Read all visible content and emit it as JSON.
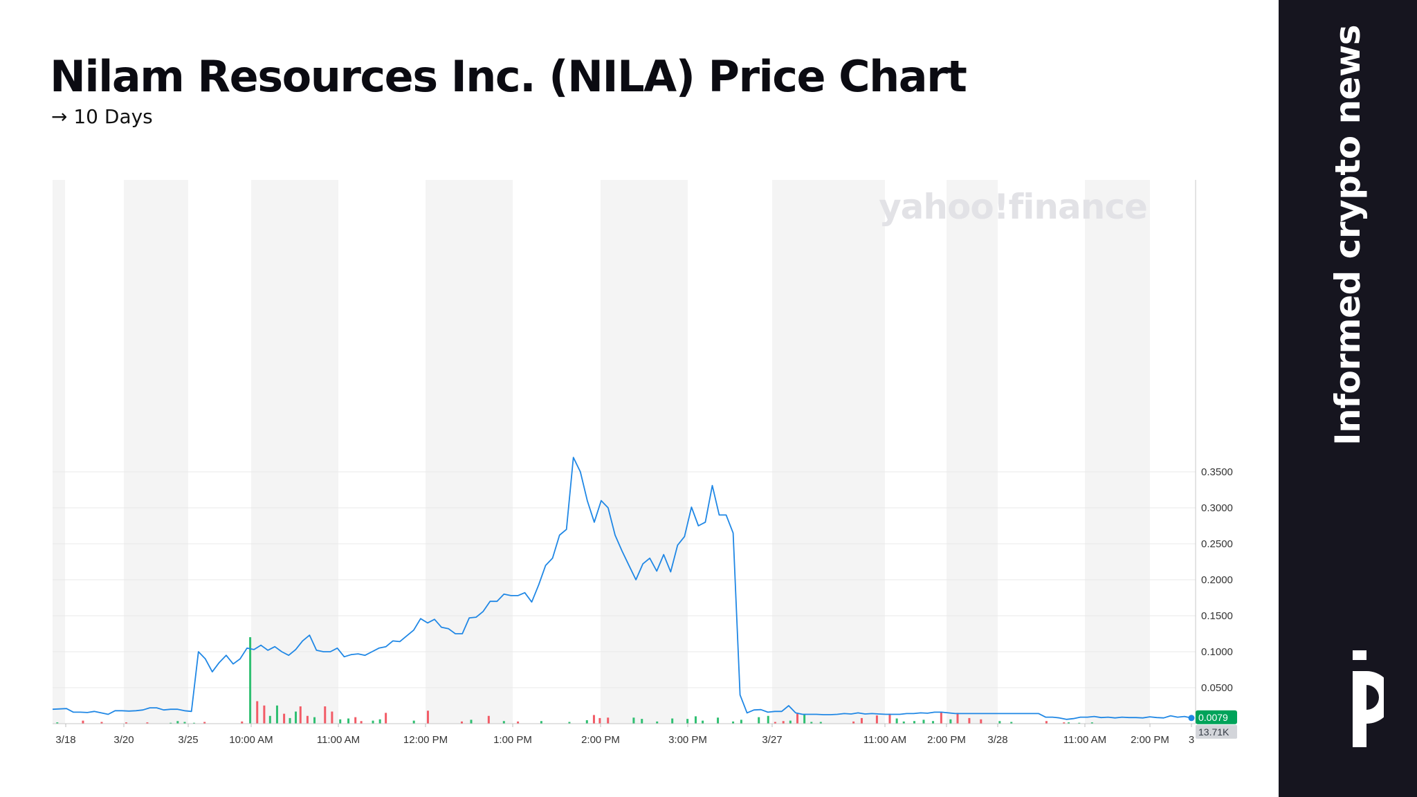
{
  "header": {
    "title": "Nilam Resources Inc. (NILA) Price Chart",
    "subtitle": "→ 10 Days"
  },
  "watermark": "yahoo!finance",
  "sidebar": {
    "tagline": "Informed crypto news",
    "logo_icon": "brand-logo-icon"
  },
  "colors": {
    "line": "#1f87e5",
    "volume_up": "#2fbf71",
    "volume_down": "#f25b66",
    "shade": "#f4f4f4",
    "sidebar_bg": "#16151f",
    "price_tag": "#00a35a",
    "volume_tag": "#d3d5da"
  },
  "chart_data": {
    "type": "line",
    "title": "Nilam Resources Inc. (NILA) Price Chart",
    "period": "10 Days",
    "ylim": [
      0,
      0.38
    ],
    "y_ticks": [
      "0.3500",
      "0.3000",
      "0.2500",
      "0.2000",
      "0.1500",
      "0.1000",
      "0.0500"
    ],
    "x_ticks": [
      "3/18",
      "3/20",
      "3/25",
      "10:00 AM",
      "11:00 AM",
      "12:00 PM",
      "1:00 PM",
      "2:00 PM",
      "3:00 PM",
      "3/27",
      "11:00 AM",
      "2:00 PM",
      "3/28",
      "11:00 AM",
      "2:00 PM",
      "3"
    ],
    "grid": true,
    "price_tag": "0.0079",
    "volume_tag": "13.71K",
    "price": [
      0.02,
      0.0205,
      0.021,
      0.016,
      0.016,
      0.0155,
      0.017,
      0.015,
      0.013,
      0.018,
      0.018,
      0.0175,
      0.018,
      0.019,
      0.022,
      0.022,
      0.019,
      0.02,
      0.02,
      0.018,
      0.017,
      0.1,
      0.09,
      0.072,
      0.085,
      0.095,
      0.083,
      0.09,
      0.105,
      0.103,
      0.109,
      0.102,
      0.107,
      0.1,
      0.095,
      0.103,
      0.115,
      0.123,
      0.102,
      0.1,
      0.1,
      0.105,
      0.093,
      0.096,
      0.097,
      0.095,
      0.1,
      0.105,
      0.107,
      0.115,
      0.114,
      0.122,
      0.13,
      0.146,
      0.14,
      0.145,
      0.134,
      0.132,
      0.125,
      0.125,
      0.147,
      0.148,
      0.156,
      0.17,
      0.17,
      0.18,
      0.178,
      0.178,
      0.182,
      0.169,
      0.193,
      0.22,
      0.23,
      0.262,
      0.27,
      0.37,
      0.35,
      0.31,
      0.28,
      0.31,
      0.3,
      0.262,
      0.24,
      0.22,
      0.2,
      0.222,
      0.23,
      0.212,
      0.235,
      0.211,
      0.248,
      0.26,
      0.301,
      0.275,
      0.28,
      0.331,
      0.29,
      0.29,
      0.265,
      0.04,
      0.015,
      0.019,
      0.0195,
      0.016,
      0.017,
      0.017,
      0.025,
      0.015,
      0.013,
      0.013,
      0.013,
      0.0125,
      0.0125,
      0.013,
      0.014,
      0.0135,
      0.015,
      0.0135,
      0.014,
      0.0135,
      0.013,
      0.013,
      0.013,
      0.014,
      0.014,
      0.015,
      0.0145,
      0.016,
      0.016,
      0.015,
      0.014,
      0.014,
      0.014,
      0.014,
      0.014,
      0.014,
      0.014,
      0.014,
      0.014,
      0.014,
      0.014,
      0.014,
      0.014,
      0.009,
      0.009,
      0.008,
      0.006,
      0.007,
      0.009,
      0.009,
      0.01,
      0.0085,
      0.009,
      0.008,
      0.009,
      0.0085,
      0.0085,
      0.008,
      0.0095,
      0.0085,
      0.008,
      0.011,
      0.009,
      0.01,
      0.0079
    ],
    "volume": [
      [
        4,
        3,
        "up"
      ],
      [
        26,
        7,
        "down"
      ],
      [
        42,
        4,
        "down"
      ],
      [
        63,
        3,
        "down"
      ],
      [
        81,
        3,
        "down"
      ],
      [
        101,
        2,
        "up"
      ],
      [
        107,
        6,
        "up"
      ],
      [
        113,
        4,
        "up"
      ],
      [
        121,
        2,
        "up"
      ],
      [
        130,
        4,
        "down"
      ],
      [
        162,
        5,
        "down"
      ],
      [
        169,
        200,
        "up"
      ],
      [
        175,
        52,
        "down"
      ],
      [
        181,
        42,
        "down"
      ],
      [
        186,
        18,
        "up"
      ],
      [
        192,
        42,
        "up"
      ],
      [
        198,
        23,
        "down"
      ],
      [
        203,
        13,
        "up"
      ],
      [
        208,
        28,
        "up"
      ],
      [
        212,
        40,
        "down"
      ],
      [
        218,
        18,
        "down"
      ],
      [
        224,
        15,
        "up"
      ],
      [
        233,
        40,
        "down"
      ],
      [
        239,
        28,
        "down"
      ],
      [
        246,
        10,
        "up"
      ],
      [
        253,
        12,
        "up"
      ],
      [
        259,
        15,
        "down"
      ],
      [
        264,
        6,
        "down"
      ],
      [
        274,
        7,
        "up"
      ],
      [
        280,
        10,
        "up"
      ],
      [
        285,
        25,
        "down"
      ],
      [
        309,
        7,
        "up"
      ],
      [
        321,
        30,
        "down"
      ],
      [
        350,
        5,
        "down"
      ],
      [
        358,
        9,
        "up"
      ],
      [
        373,
        18,
        "down"
      ],
      [
        386,
        6,
        "up"
      ],
      [
        398,
        5,
        "down"
      ],
      [
        418,
        6,
        "up"
      ],
      [
        442,
        4,
        "up"
      ],
      [
        457,
        8,
        "up"
      ],
      [
        463,
        20,
        "down"
      ],
      [
        468,
        13,
        "down"
      ],
      [
        475,
        14,
        "down"
      ],
      [
        497,
        14,
        "up"
      ],
      [
        504,
        11,
        "up"
      ],
      [
        517,
        5,
        "up"
      ],
      [
        530,
        12,
        "up"
      ],
      [
        543,
        11,
        "up"
      ],
      [
        550,
        17,
        "up"
      ],
      [
        556,
        7,
        "up"
      ],
      [
        569,
        14,
        "up"
      ],
      [
        582,
        5,
        "up"
      ],
      [
        589,
        9,
        "up"
      ],
      [
        604,
        15,
        "up"
      ],
      [
        612,
        18,
        "up"
      ],
      [
        618,
        4,
        "down"
      ],
      [
        625,
        6,
        "down"
      ],
      [
        631,
        7,
        "up"
      ],
      [
        637,
        23,
        "down"
      ],
      [
        643,
        21,
        "up"
      ],
      [
        649,
        4,
        "up"
      ],
      [
        657,
        4,
        "up"
      ],
      [
        685,
        5,
        "down"
      ],
      [
        692,
        13,
        "down"
      ],
      [
        705,
        19,
        "down"
      ],
      [
        716,
        23,
        "down"
      ],
      [
        722,
        12,
        "up"
      ],
      [
        728,
        5,
        "up"
      ],
      [
        737,
        6,
        "up"
      ],
      [
        745,
        9,
        "up"
      ],
      [
        753,
        6,
        "up"
      ],
      [
        760,
        27,
        "down"
      ],
      [
        768,
        10,
        "up"
      ],
      [
        774,
        25,
        "down"
      ],
      [
        784,
        13,
        "down"
      ],
      [
        794,
        10,
        "down"
      ],
      [
        810,
        6,
        "up"
      ],
      [
        820,
        4,
        "up"
      ],
      [
        850,
        6,
        "down"
      ],
      [
        865,
        3,
        "down"
      ],
      [
        869,
        3,
        "up"
      ],
      [
        878,
        2,
        "up"
      ],
      [
        889,
        3,
        "up"
      ]
    ]
  }
}
